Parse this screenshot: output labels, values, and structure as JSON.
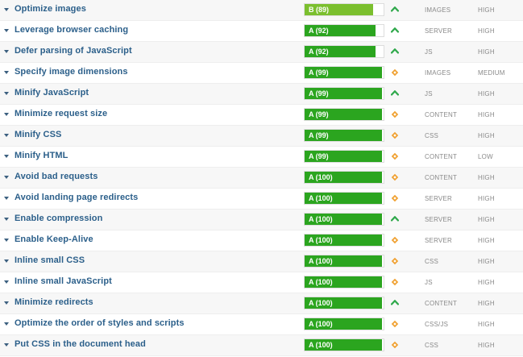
{
  "colors": {
    "grade_a": "#2ba51f",
    "grade_b": "#7bbf2e",
    "chevron": "#2ea84a",
    "diamond": "#f0a030",
    "link": "#2b5f8a"
  },
  "rows": [
    {
      "name": "Optimize images",
      "grade": "B (89)",
      "score": 89,
      "icon": "chevron-up-icon",
      "type": "IMAGES",
      "priority": "HIGH"
    },
    {
      "name": "Leverage browser caching",
      "grade": "A (92)",
      "score": 92,
      "icon": "chevron-up-icon",
      "type": "SERVER",
      "priority": "HIGH"
    },
    {
      "name": "Defer parsing of JavaScript",
      "grade": "A (92)",
      "score": 92,
      "icon": "chevron-up-icon",
      "type": "JS",
      "priority": "HIGH"
    },
    {
      "name": "Specify image dimensions",
      "grade": "A (99)",
      "score": 99,
      "icon": "diamond-icon",
      "type": "IMAGES",
      "priority": "MEDIUM"
    },
    {
      "name": "Minify JavaScript",
      "grade": "A (99)",
      "score": 99,
      "icon": "chevron-up-icon",
      "type": "JS",
      "priority": "HIGH"
    },
    {
      "name": "Minimize request size",
      "grade": "A (99)",
      "score": 99,
      "icon": "diamond-icon",
      "type": "CONTENT",
      "priority": "HIGH"
    },
    {
      "name": "Minify CSS",
      "grade": "A (99)",
      "score": 99,
      "icon": "diamond-icon",
      "type": "CSS",
      "priority": "HIGH"
    },
    {
      "name": "Minify HTML",
      "grade": "A (99)",
      "score": 99,
      "icon": "diamond-icon",
      "type": "CONTENT",
      "priority": "LOW"
    },
    {
      "name": "Avoid bad requests",
      "grade": "A (100)",
      "score": 100,
      "icon": "diamond-icon",
      "type": "CONTENT",
      "priority": "HIGH"
    },
    {
      "name": "Avoid landing page redirects",
      "grade": "A (100)",
      "score": 100,
      "icon": "diamond-icon",
      "type": "SERVER",
      "priority": "HIGH"
    },
    {
      "name": "Enable compression",
      "grade": "A (100)",
      "score": 100,
      "icon": "chevron-up-icon",
      "type": "SERVER",
      "priority": "HIGH"
    },
    {
      "name": "Enable Keep-Alive",
      "grade": "A (100)",
      "score": 100,
      "icon": "diamond-icon",
      "type": "SERVER",
      "priority": "HIGH"
    },
    {
      "name": "Inline small CSS",
      "grade": "A (100)",
      "score": 100,
      "icon": "diamond-icon",
      "type": "CSS",
      "priority": "HIGH"
    },
    {
      "name": "Inline small JavaScript",
      "grade": "A (100)",
      "score": 100,
      "icon": "diamond-icon",
      "type": "JS",
      "priority": "HIGH"
    },
    {
      "name": "Minimize redirects",
      "grade": "A (100)",
      "score": 100,
      "icon": "chevron-up-icon",
      "type": "CONTENT",
      "priority": "HIGH"
    },
    {
      "name": "Optimize the order of styles and scripts",
      "grade": "A (100)",
      "score": 100,
      "icon": "diamond-icon",
      "type": "CSS/JS",
      "priority": "HIGH"
    },
    {
      "name": "Put CSS in the document head",
      "grade": "A (100)",
      "score": 100,
      "icon": "diamond-icon",
      "type": "CSS",
      "priority": "HIGH"
    }
  ]
}
